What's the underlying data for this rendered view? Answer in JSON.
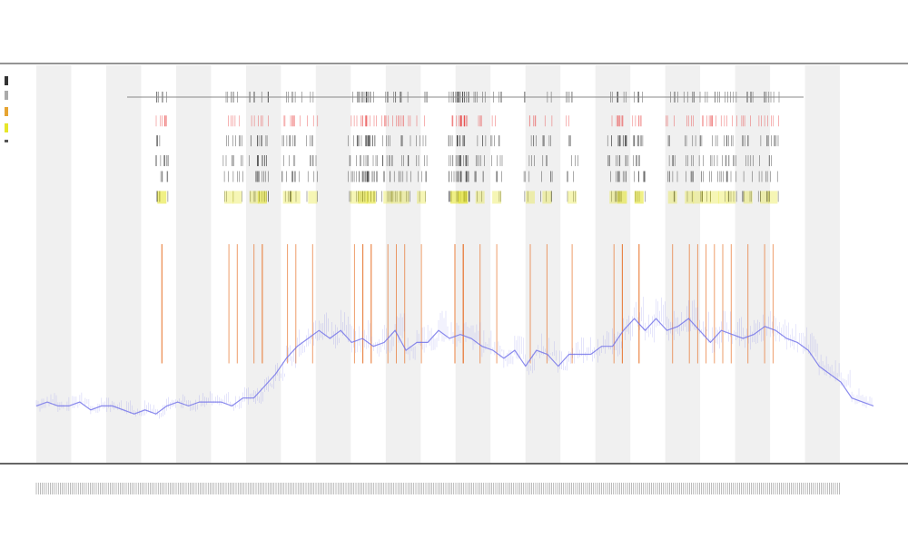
{
  "chart_data": {
    "type": "line",
    "title": "",
    "subtitle_lines": [
      "",
      ""
    ],
    "xlabel": "",
    "ylabel": "",
    "legend_placement": "top-left",
    "grid": false,
    "band_color": "#f0f0f0",
    "band_count": 12,
    "colors": {
      "series": "#6e6ee8",
      "spike": "#e8742c",
      "highlight": "#e6e62a",
      "event_dark": "#222222",
      "event_red": "#e63232"
    },
    "series": [
      {
        "name": "",
        "values": [
          0.12,
          0.13,
          0.12,
          0.12,
          0.13,
          0.11,
          0.12,
          0.12,
          0.11,
          0.1,
          0.11,
          0.1,
          0.12,
          0.13,
          0.12,
          0.13,
          0.13,
          0.13,
          0.12,
          0.14,
          0.14,
          0.17,
          0.2,
          0.24,
          0.27,
          0.29,
          0.31,
          0.29,
          0.31,
          0.28,
          0.29,
          0.27,
          0.28,
          0.31,
          0.26,
          0.28,
          0.28,
          0.31,
          0.29,
          0.3,
          0.29,
          0.27,
          0.26,
          0.24,
          0.26,
          0.22,
          0.26,
          0.25,
          0.22,
          0.25,
          0.25,
          0.25,
          0.27,
          0.27,
          0.31,
          0.34,
          0.31,
          0.34,
          0.31,
          0.32,
          0.34,
          0.31,
          0.28,
          0.31,
          0.3,
          0.29,
          0.3,
          0.32,
          0.31,
          0.29,
          0.28,
          0.26,
          0.22,
          0.2,
          0.18,
          0.14,
          0.13,
          0.12
        ],
        "y_min": 0.0,
        "y_max": 1.0
      }
    ],
    "spike_x_positions": [
      0.15,
      0.15,
      0.23,
      0.24,
      0.26,
      0.27,
      0.27,
      0.3,
      0.31,
      0.33,
      0.38,
      0.39,
      0.39,
      0.4,
      0.4,
      0.42,
      0.43,
      0.44,
      0.46,
      0.5,
      0.5,
      0.51,
      0.51,
      0.51,
      0.53,
      0.55,
      0.59,
      0.61,
      0.64,
      0.69,
      0.7,
      0.7,
      0.72,
      0.72,
      0.76,
      0.78,
      0.79,
      0.8,
      0.81,
      0.82,
      0.83,
      0.85,
      0.87,
      0.88
    ],
    "event_row_fraction": [
      0.08,
      0.14,
      0.19,
      0.24,
      0.28,
      0.33
    ]
  }
}
